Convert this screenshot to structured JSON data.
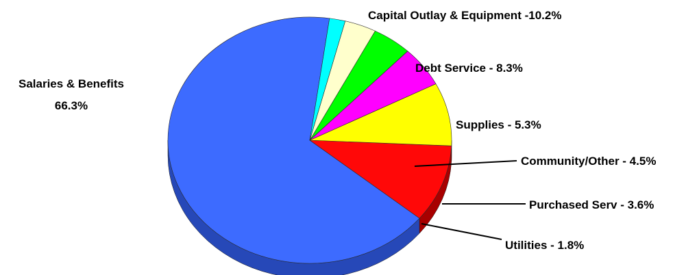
{
  "chart_data": {
    "type": "pie",
    "title": "",
    "slices": [
      {
        "label": "Salaries & Benefits",
        "value_text": "66.3%",
        "value": 66.3,
        "color": "#3d6bff",
        "side_color": "#2648b8"
      },
      {
        "label": "Capital Outlay & Equipment",
        "value_text": "-10.2%",
        "value": 10.2,
        "color": "#ff0808",
        "side_color": "#a80000"
      },
      {
        "label": "Debt Service",
        "value_text": "- 8.3%",
        "value": 8.3,
        "color": "#ffff00",
        "side_color": "#b3b300"
      },
      {
        "label": "Supplies",
        "value_text": "- 5.3%",
        "value": 5.3,
        "color": "#ff00ff",
        "side_color": "#a800a8"
      },
      {
        "label": "Community/Other",
        "value_text": "- 4.5%",
        "value": 4.5,
        "color": "#00ff00",
        "side_color": "#009c00"
      },
      {
        "label": "Purchased Serv",
        "value_text": "- 3.6%",
        "value": 3.6,
        "color": "#ffffcc",
        "side_color": "#9c9c78"
      },
      {
        "label": "Utilities",
        "value_text": "- 1.8%",
        "value": 1.8,
        "color": "#00ffff",
        "side_color": "#009c9c"
      }
    ],
    "style": "3d",
    "legend": "none",
    "start_angle_deg": 82
  }
}
